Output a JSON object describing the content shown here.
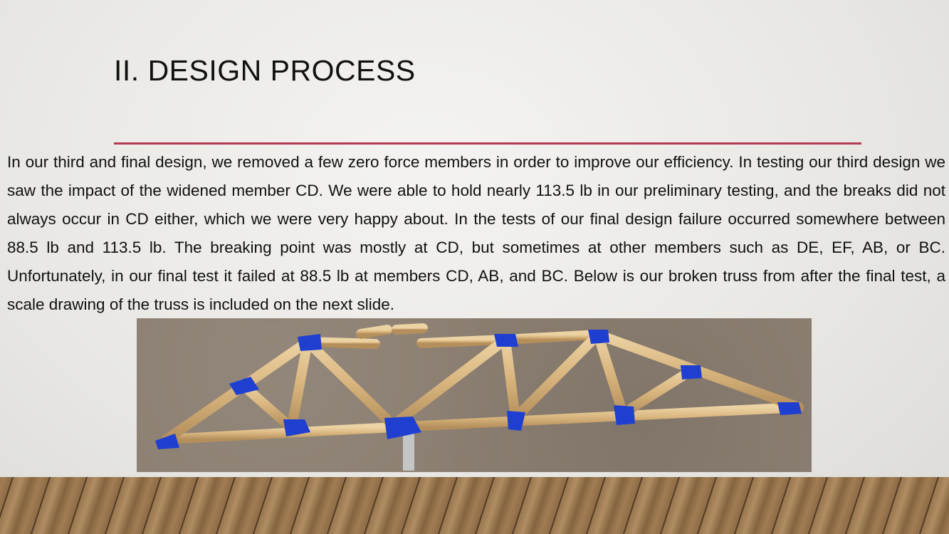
{
  "slide": {
    "title": "II. DESIGN PROCESS",
    "body": "In our third and final design, we removed a few zero force members in order to improve our efficiency. In testing our third design we saw the impact of the widened member CD. We were able to hold nearly 113.5 lb in our preliminary testing, and the breaks did not always occur in CD either, which we were very happy about. In the tests of our final design failure occurred somewhere between 88.5 lb and 113.5 lb. The breaking point was mostly at CD, but sometimes at other members such as DE, EF, AB, or BC. Unfortunately, in our final test it failed at 88.5 lb at members CD, AB, and BC. Below is our broken truss from after the final test, a scale drawing of the truss is included on the next slide.",
    "accent_color": "#b23a53",
    "photo": {
      "subject": "broken-balsa-truss-photo",
      "member_color": "#d9b57e",
      "gusset_color": "#1f3fd1",
      "background_color": "#8c7f72"
    },
    "floor": {
      "subject": "wood-floor-decoration"
    }
  }
}
